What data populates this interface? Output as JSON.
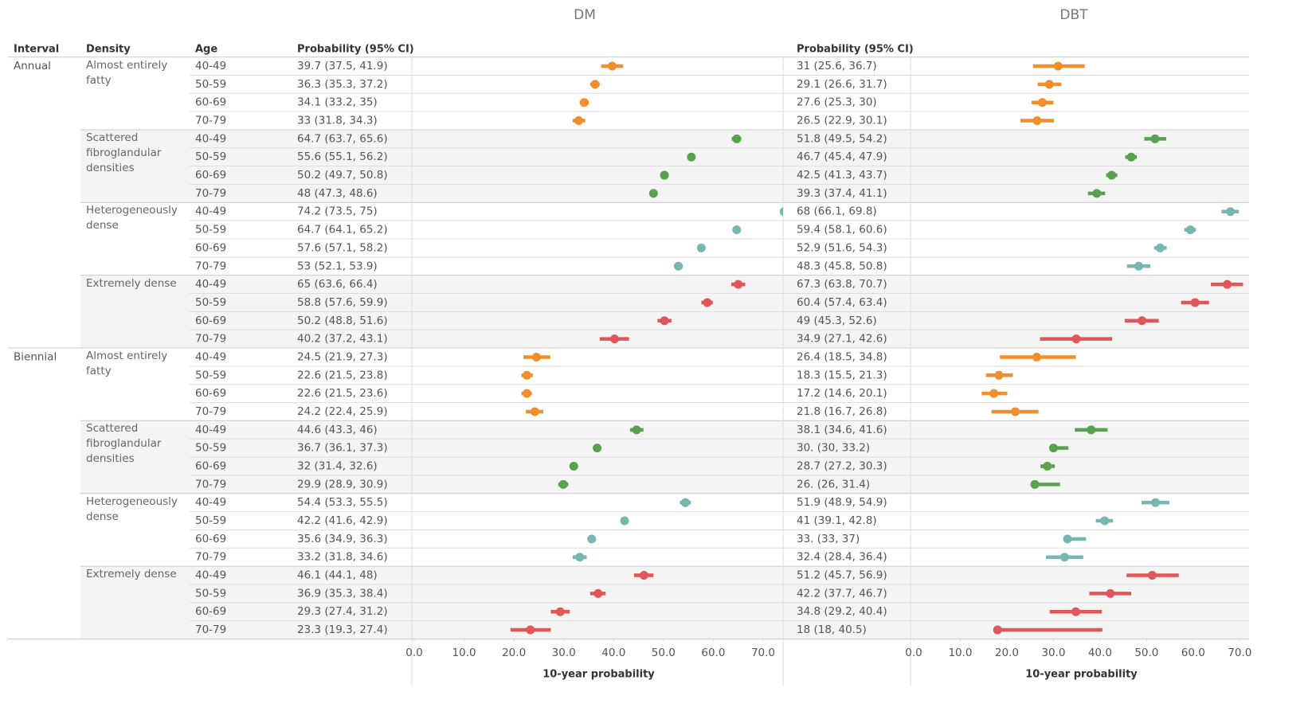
{
  "headers": [
    "Interval",
    "Density",
    "Age"
  ],
  "panels": [
    {
      "key": "dm",
      "title": "DM",
      "column_header": "Probability (95% CI)",
      "axis_title": "10-year probability",
      "xlim": [
        0,
        74
      ],
      "xticks": [
        {
          "value": 0,
          "label": "0.0"
        },
        {
          "value": 10,
          "label": "10.0"
        },
        {
          "value": 20,
          "label": "20.0"
        },
        {
          "value": 30,
          "label": "30.0"
        },
        {
          "value": 40,
          "label": "40.0"
        },
        {
          "value": 50,
          "label": "50.0"
        },
        {
          "value": 60,
          "label": "60.0"
        },
        {
          "value": 70,
          "label": "70.0"
        }
      ]
    },
    {
      "key": "dbt",
      "title": "DBT",
      "column_header": "Probability (95% CI)",
      "axis_title": "10-year probability",
      "xlim": [
        0,
        72
      ],
      "xticks": [
        {
          "value": 0,
          "label": "0.0"
        },
        {
          "value": 10,
          "label": "10.0"
        },
        {
          "value": 20,
          "label": "20.0"
        },
        {
          "value": 30,
          "label": "30.0"
        },
        {
          "value": 40,
          "label": "40.0"
        },
        {
          "value": 50,
          "label": "50.0"
        },
        {
          "value": 60,
          "label": "60.0"
        },
        {
          "value": 70,
          "label": "70.0"
        }
      ]
    }
  ],
  "groups": [
    {
      "interval": "Annual",
      "densities": [
        {
          "density": "Almost entirely fatty",
          "color": "#f28e2b",
          "rows": [
            {
              "age": "40-49",
              "dm": {
                "label": "39.7 (37.5, 41.9)",
                "value": 39.7,
                "lo": 37.5,
                "hi": 41.9
              },
              "dbt": {
                "label": "31 (25.6, 36.7)",
                "value": 31,
                "lo": 25.6,
                "hi": 36.7
              }
            },
            {
              "age": "50-59",
              "dm": {
                "label": "36.3 (35.3, 37.2)",
                "value": 36.3,
                "lo": 35.3,
                "hi": 37.2
              },
              "dbt": {
                "label": "29.1 (26.6, 31.7)",
                "value": 29.1,
                "lo": 26.6,
                "hi": 31.7
              }
            },
            {
              "age": "60-69",
              "dm": {
                "label": "34.1 (33.2, 35)",
                "value": 34.1,
                "lo": 33.2,
                "hi": 35
              },
              "dbt": {
                "label": "27.6 (25.3, 30)",
                "value": 27.6,
                "lo": 25.3,
                "hi": 30
              }
            },
            {
              "age": "70-79",
              "dm": {
                "label": "33 (31.8, 34.3)",
                "value": 33,
                "lo": 31.8,
                "hi": 34.3
              },
              "dbt": {
                "label": "26.5 (22.9, 30.1)",
                "value": 26.5,
                "lo": 22.9,
                "hi": 30.1
              }
            }
          ]
        },
        {
          "density": "Scattered fibroglandular densities",
          "color": "#59a14f",
          "rows": [
            {
              "age": "40-49",
              "dm": {
                "label": "64.7 (63.7, 65.6)",
                "value": 64.7,
                "lo": 63.7,
                "hi": 65.6
              },
              "dbt": {
                "label": "51.8 (49.5, 54.2)",
                "value": 51.8,
                "lo": 49.5,
                "hi": 54.2
              }
            },
            {
              "age": "50-59",
              "dm": {
                "label": "55.6 (55.1, 56.2)",
                "value": 55.6,
                "lo": 55.1,
                "hi": 56.2
              },
              "dbt": {
                "label": "46.7 (45.4, 47.9)",
                "value": 46.7,
                "lo": 45.4,
                "hi": 47.9
              }
            },
            {
              "age": "60-69",
              "dm": {
                "label": "50.2 (49.7, 50.8)",
                "value": 50.2,
                "lo": 49.7,
                "hi": 50.8
              },
              "dbt": {
                "label": "42.5 (41.3, 43.7)",
                "value": 42.5,
                "lo": 41.3,
                "hi": 43.7
              }
            },
            {
              "age": "70-79",
              "dm": {
                "label": "48 (47.3, 48.6)",
                "value": 48,
                "lo": 47.3,
                "hi": 48.6
              },
              "dbt": {
                "label": "39.3 (37.4, 41.1)",
                "value": 39.3,
                "lo": 37.4,
                "hi": 41.1
              }
            }
          ]
        },
        {
          "density": "Heterogeneously dense",
          "color": "#76b7b2",
          "rows": [
            {
              "age": "40-49",
              "dm": {
                "label": "74.2 (73.5, 75)",
                "value": 74.2,
                "lo": 73.5,
                "hi": 75
              },
              "dbt": {
                "label": "68 (66.1, 69.8)",
                "value": 68,
                "lo": 66.1,
                "hi": 69.8
              }
            },
            {
              "age": "50-59",
              "dm": {
                "label": "64.7 (64.1, 65.2)",
                "value": 64.7,
                "lo": 64.1,
                "hi": 65.2
              },
              "dbt": {
                "label": "59.4 (58.1, 60.6)",
                "value": 59.4,
                "lo": 58.1,
                "hi": 60.6
              }
            },
            {
              "age": "60-69",
              "dm": {
                "label": "57.6 (57.1, 58.2)",
                "value": 57.6,
                "lo": 57.1,
                "hi": 58.2
              },
              "dbt": {
                "label": "52.9 (51.6, 54.3)",
                "value": 52.9,
                "lo": 51.6,
                "hi": 54.3
              }
            },
            {
              "age": "70-79",
              "dm": {
                "label": "53 (52.1, 53.9)",
                "value": 53,
                "lo": 52.1,
                "hi": 53.9
              },
              "dbt": {
                "label": "48.3 (45.8, 50.8)",
                "value": 48.3,
                "lo": 45.8,
                "hi": 50.8
              }
            }
          ]
        },
        {
          "density": "Extremely dense",
          "color": "#e15759",
          "rows": [
            {
              "age": "40-49",
              "dm": {
                "label": "65 (63.6, 66.4)",
                "value": 65,
                "lo": 63.6,
                "hi": 66.4
              },
              "dbt": {
                "label": "67.3 (63.8, 70.7)",
                "value": 67.3,
                "lo": 63.8,
                "hi": 70.7
              }
            },
            {
              "age": "50-59",
              "dm": {
                "label": "58.8 (57.6, 59.9)",
                "value": 58.8,
                "lo": 57.6,
                "hi": 59.9
              },
              "dbt": {
                "label": "60.4 (57.4, 63.4)",
                "value": 60.4,
                "lo": 57.4,
                "hi": 63.4
              }
            },
            {
              "age": "60-69",
              "dm": {
                "label": "50.2 (48.8, 51.6)",
                "value": 50.2,
                "lo": 48.8,
                "hi": 51.6
              },
              "dbt": {
                "label": "49 (45.3, 52.6)",
                "value": 49,
                "lo": 45.3,
                "hi": 52.6
              }
            },
            {
              "age": "70-79",
              "dm": {
                "label": "40.2 (37.2, 43.1)",
                "value": 40.2,
                "lo": 37.2,
                "hi": 43.1
              },
              "dbt": {
                "label": "34.9 (27.1, 42.6)",
                "value": 34.9,
                "lo": 27.1,
                "hi": 42.6
              }
            }
          ]
        }
      ]
    },
    {
      "interval": "Biennial",
      "densities": [
        {
          "density": "Almost entirely fatty",
          "color": "#f28e2b",
          "rows": [
            {
              "age": "40-49",
              "dm": {
                "label": "24.5 (21.9, 27.3)",
                "value": 24.5,
                "lo": 21.9,
                "hi": 27.3
              },
              "dbt": {
                "label": "26.4 (18.5, 34.8)",
                "value": 26.4,
                "lo": 18.5,
                "hi": 34.8
              }
            },
            {
              "age": "50-59",
              "dm": {
                "label": "22.6 (21.5, 23.8)",
                "value": 22.6,
                "lo": 21.5,
                "hi": 23.8
              },
              "dbt": {
                "label": "18.3 (15.5, 21.3)",
                "value": 18.3,
                "lo": 15.5,
                "hi": 21.3
              }
            },
            {
              "age": "60-69",
              "dm": {
                "label": "22.6 (21.5, 23.6)",
                "value": 22.6,
                "lo": 21.5,
                "hi": 23.6
              },
              "dbt": {
                "label": "17.2 (14.6, 20.1)",
                "value": 17.2,
                "lo": 14.6,
                "hi": 20.1
              }
            },
            {
              "age": "70-79",
              "dm": {
                "label": "24.2 (22.4, 25.9)",
                "value": 24.2,
                "lo": 22.4,
                "hi": 25.9
              },
              "dbt": {
                "label": "21.8 (16.7, 26.8)",
                "value": 21.8,
                "lo": 16.7,
                "hi": 26.8
              }
            }
          ]
        },
        {
          "density": "Scattered fibroglandular densities",
          "color": "#59a14f",
          "rows": [
            {
              "age": "40-49",
              "dm": {
                "label": "44.6 (43.3, 46)",
                "value": 44.6,
                "lo": 43.3,
                "hi": 46
              },
              "dbt": {
                "label": "38.1 (34.6, 41.6)",
                "value": 38.1,
                "lo": 34.6,
                "hi": 41.6
              }
            },
            {
              "age": "50-59",
              "dm": {
                "label": "36.7 (36.1, 37.3)",
                "value": 36.7,
                "lo": 36.1,
                "hi": 37.3
              },
              "dbt": {
                "label": "30. (30, 33.2)",
                "value": 30,
                "lo": 30,
                "hi": 33.2
              }
            },
            {
              "age": "60-69",
              "dm": {
                "label": "32 (31.4, 32.6)",
                "value": 32,
                "lo": 31.4,
                "hi": 32.6
              },
              "dbt": {
                "label": "28.7 (27.2, 30.3)",
                "value": 28.7,
                "lo": 27.2,
                "hi": 30.3
              }
            },
            {
              "age": "70-79",
              "dm": {
                "label": "29.9 (28.9, 30.9)",
                "value": 29.9,
                "lo": 28.9,
                "hi": 30.9
              },
              "dbt": {
                "label": "26. (26, 31.4)",
                "value": 26,
                "lo": 26,
                "hi": 31.4
              }
            }
          ]
        },
        {
          "density": "Heterogeneously dense",
          "color": "#76b7b2",
          "rows": [
            {
              "age": "40-49",
              "dm": {
                "label": "54.4 (53.3, 55.5)",
                "value": 54.4,
                "lo": 53.3,
                "hi": 55.5
              },
              "dbt": {
                "label": "51.9 (48.9, 54.9)",
                "value": 51.9,
                "lo": 48.9,
                "hi": 54.9
              }
            },
            {
              "age": "50-59",
              "dm": {
                "label": "42.2 (41.6, 42.9)",
                "value": 42.2,
                "lo": 41.6,
                "hi": 42.9
              },
              "dbt": {
                "label": "41 (39.1, 42.8)",
                "value": 41,
                "lo": 39.1,
                "hi": 42.8
              }
            },
            {
              "age": "60-69",
              "dm": {
                "label": "35.6 (34.9, 36.3)",
                "value": 35.6,
                "lo": 34.9,
                "hi": 36.3
              },
              "dbt": {
                "label": "33. (33, 37)",
                "value": 33,
                "lo": 33,
                "hi": 37
              }
            },
            {
              "age": "70-79",
              "dm": {
                "label": "33.2 (31.8, 34.6)",
                "value": 33.2,
                "lo": 31.8,
                "hi": 34.6
              },
              "dbt": {
                "label": "32.4 (28.4, 36.4)",
                "value": 32.4,
                "lo": 28.4,
                "hi": 36.4
              }
            }
          ]
        },
        {
          "density": "Extremely dense",
          "color": "#e15759",
          "rows": [
            {
              "age": "40-49",
              "dm": {
                "label": "46.1 (44.1, 48)",
                "value": 46.1,
                "lo": 44.1,
                "hi": 48
              },
              "dbt": {
                "label": "51.2 (45.7, 56.9)",
                "value": 51.2,
                "lo": 45.7,
                "hi": 56.9
              }
            },
            {
              "age": "50-59",
              "dm": {
                "label": "36.9 (35.3, 38.4)",
                "value": 36.9,
                "lo": 35.3,
                "hi": 38.4
              },
              "dbt": {
                "label": "42.2 (37.7, 46.7)",
                "value": 42.2,
                "lo": 37.7,
                "hi": 46.7
              }
            },
            {
              "age": "60-69",
              "dm": {
                "label": "29.3 (27.4, 31.2)",
                "value": 29.3,
                "lo": 27.4,
                "hi": 31.2
              },
              "dbt": {
                "label": "34.8 (29.2, 40.4)",
                "value": 34.8,
                "lo": 29.2,
                "hi": 40.4
              }
            },
            {
              "age": "70-79",
              "dm": {
                "label": "23.3 (19.3, 27.4)",
                "value": 23.3,
                "lo": 19.3,
                "hi": 27.4
              },
              "dbt": {
                "label": "18 (18, 40.5)",
                "value": 18,
                "lo": 18,
                "hi": 40.5
              }
            }
          ]
        }
      ]
    }
  ]
}
